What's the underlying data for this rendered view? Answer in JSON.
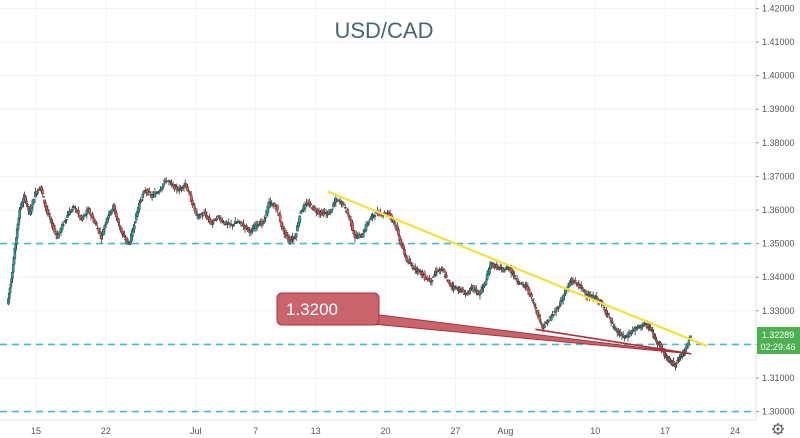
{
  "chart_data": {
    "type": "candlestick",
    "title": "USD/CAD",
    "symbol": "USD/CAD",
    "ylim": [
      1.2975,
      1.4225
    ],
    "y_ticks": [
      "1.42000",
      "1.41000",
      "1.40000",
      "1.39000",
      "1.38000",
      "1.37000",
      "1.36000",
      "1.35000",
      "1.34000",
      "1.33000",
      "1.32000",
      "1.31000",
      "1.30000"
    ],
    "x_ticks": [
      {
        "label": "15",
        "day": 15
      },
      {
        "label": "22",
        "day": 22
      },
      {
        "label": "Jul",
        "day": 31
      },
      {
        "label": "7",
        "day": 37
      },
      {
        "label": "13",
        "day": 43
      },
      {
        "label": "20",
        "day": 50
      },
      {
        "label": "27",
        "day": 57
      },
      {
        "label": "Aug",
        "day": 62
      },
      {
        "label": "10",
        "day": 71
      },
      {
        "label": "17",
        "day": 78
      },
      {
        "label": "24",
        "day": 85
      }
    ],
    "current_price": "1.32289",
    "countdown": "02:29:46",
    "callout_label": "1.3200",
    "horizontal_levels": [
      1.35,
      1.32,
      1.3
    ],
    "trendline_resistance": {
      "start": {
        "day": 44.2,
        "price": 1.3655
      },
      "end": {
        "day": 82.2,
        "price": 1.3195
      }
    },
    "trendline_support": {
      "start": {
        "day": 65,
        "price": 1.3245
      },
      "end": {
        "day": 80.6,
        "price": 1.3172
      }
    },
    "close_path": [
      [
        12.2,
        1.332
      ],
      [
        12.6,
        1.34
      ],
      [
        13.0,
        1.35
      ],
      [
        13.4,
        1.36
      ],
      [
        13.9,
        1.364
      ],
      [
        14.4,
        1.359
      ],
      [
        15.0,
        1.365
      ],
      [
        15.5,
        1.367
      ],
      [
        16.0,
        1.361
      ],
      [
        16.6,
        1.356
      ],
      [
        17.2,
        1.352
      ],
      [
        17.8,
        1.356
      ],
      [
        18.3,
        1.359
      ],
      [
        18.9,
        1.361
      ],
      [
        19.6,
        1.357
      ],
      [
        20.3,
        1.36
      ],
      [
        21.0,
        1.356
      ],
      [
        21.6,
        1.352
      ],
      [
        22.2,
        1.358
      ],
      [
        22.8,
        1.361
      ],
      [
        23.3,
        1.356
      ],
      [
        23.8,
        1.352
      ],
      [
        24.4,
        1.35
      ],
      [
        24.9,
        1.356
      ],
      [
        25.4,
        1.362
      ],
      [
        26.0,
        1.366
      ],
      [
        26.7,
        1.364
      ],
      [
        27.4,
        1.366
      ],
      [
        28.1,
        1.369
      ],
      [
        28.8,
        1.367
      ],
      [
        29.4,
        1.366
      ],
      [
        30.0,
        1.368
      ],
      [
        30.6,
        1.363
      ],
      [
        31.2,
        1.358
      ],
      [
        31.9,
        1.359
      ],
      [
        32.6,
        1.356
      ],
      [
        33.3,
        1.358
      ],
      [
        34.0,
        1.356
      ],
      [
        34.6,
        1.3555
      ],
      [
        35.3,
        1.3565
      ],
      [
        36.0,
        1.355
      ],
      [
        36.6,
        1.3535
      ],
      [
        37.2,
        1.356
      ],
      [
        37.8,
        1.356
      ],
      [
        38.4,
        1.362
      ],
      [
        39.1,
        1.361
      ],
      [
        39.8,
        1.354
      ],
      [
        40.4,
        1.351
      ],
      [
        41.0,
        1.352
      ],
      [
        41.6,
        1.36
      ],
      [
        42.3,
        1.362
      ],
      [
        43.0,
        1.36
      ],
      [
        43.7,
        1.359
      ],
      [
        44.4,
        1.359
      ],
      [
        45.1,
        1.363
      ],
      [
        45.8,
        1.362
      ],
      [
        46.4,
        1.358
      ],
      [
        47.0,
        1.352
      ],
      [
        47.7,
        1.3525
      ],
      [
        48.4,
        1.357
      ],
      [
        49.0,
        1.359
      ],
      [
        49.7,
        1.359
      ],
      [
        50.4,
        1.359
      ],
      [
        51.0,
        1.356
      ],
      [
        51.6,
        1.35
      ],
      [
        52.2,
        1.345
      ],
      [
        52.8,
        1.343
      ],
      [
        53.4,
        1.342
      ],
      [
        54.0,
        1.34
      ],
      [
        54.6,
        1.339
      ],
      [
        55.2,
        1.342
      ],
      [
        55.8,
        1.342
      ],
      [
        56.4,
        1.338
      ],
      [
        57.0,
        1.337
      ],
      [
        57.6,
        1.336
      ],
      [
        58.2,
        1.335
      ],
      [
        58.8,
        1.337
      ],
      [
        59.4,
        1.335
      ],
      [
        60.0,
        1.338
      ],
      [
        60.6,
        1.344
      ],
      [
        61.2,
        1.343
      ],
      [
        61.8,
        1.342
      ],
      [
        62.4,
        1.343
      ],
      [
        63.0,
        1.34
      ],
      [
        63.6,
        1.338
      ],
      [
        64.2,
        1.337
      ],
      [
        64.8,
        1.333
      ],
      [
        65.3,
        1.329
      ],
      [
        65.8,
        1.325
      ],
      [
        66.3,
        1.327
      ],
      [
        66.9,
        1.329
      ],
      [
        67.5,
        1.332
      ],
      [
        68.1,
        1.336
      ],
      [
        68.7,
        1.339
      ],
      [
        69.3,
        1.338
      ],
      [
        69.9,
        1.336
      ],
      [
        70.5,
        1.334
      ],
      [
        71.1,
        1.334
      ],
      [
        71.7,
        1.332
      ],
      [
        72.3,
        1.329
      ],
      [
        72.9,
        1.325
      ],
      [
        73.5,
        1.323
      ],
      [
        74.1,
        1.322
      ],
      [
        74.7,
        1.324
      ],
      [
        75.3,
        1.325
      ],
      [
        75.9,
        1.326
      ],
      [
        76.5,
        1.325
      ],
      [
        77.0,
        1.322
      ],
      [
        77.5,
        1.32
      ],
      [
        78.0,
        1.317
      ],
      [
        78.5,
        1.315
      ],
      [
        79.0,
        1.314
      ],
      [
        79.5,
        1.316
      ],
      [
        80.0,
        1.318
      ],
      [
        80.6,
        1.3229
      ]
    ]
  }
}
